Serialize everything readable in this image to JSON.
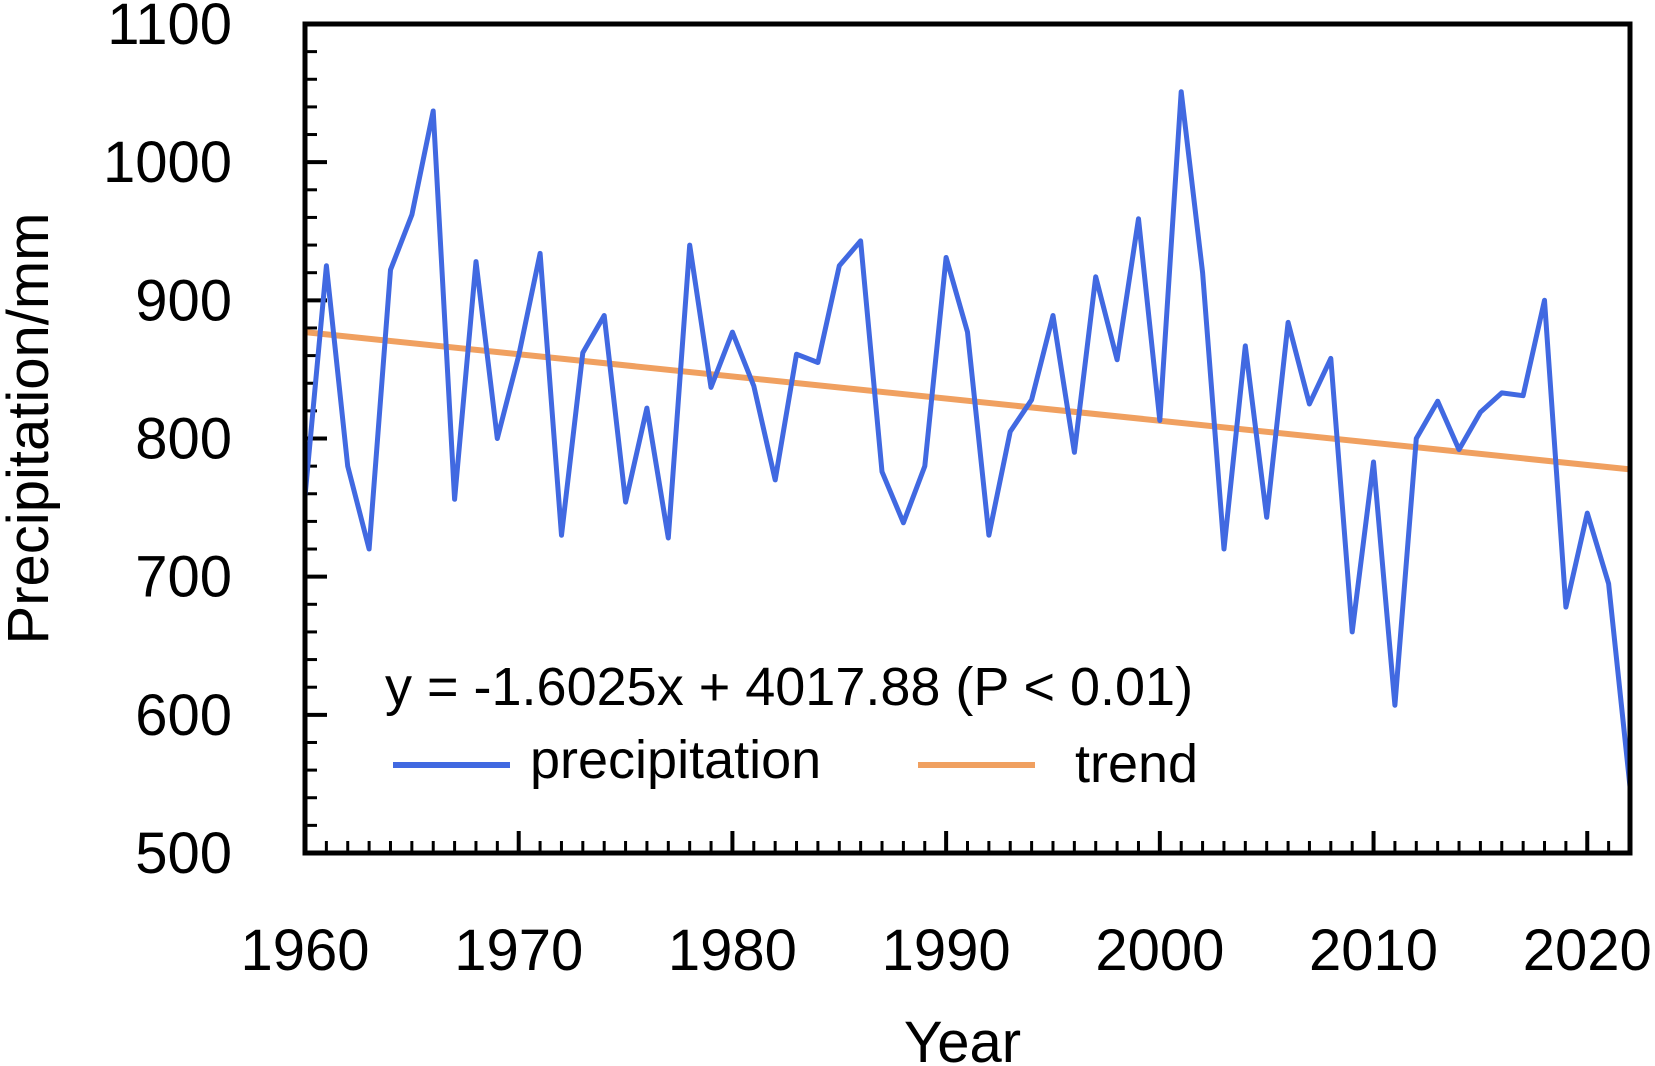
{
  "chart_data": {
    "type": "line",
    "xlabel": "Year",
    "ylabel": "Precipitation/mm",
    "xlim": [
      1960,
      2022
    ],
    "ylim": [
      500,
      1100
    ],
    "xticks": [
      1960,
      1970,
      1980,
      1990,
      2000,
      2010,
      2020
    ],
    "yticks": [
      500,
      600,
      700,
      800,
      900,
      1000,
      1100
    ],
    "x_tick_labels": [
      "1960",
      "1970",
      "1980",
      "1990",
      "2000",
      "2010",
      "2020"
    ],
    "y_tick_labels": [
      "500",
      "600",
      "700",
      "800",
      "900",
      "1000",
      "1100"
    ],
    "annotation": "y = -1.6025x + 4017.88 (P < 0.01)",
    "legend": [
      {
        "label": "precipitation",
        "color": "#4169E1"
      },
      {
        "label": "trend",
        "color": "#F0A060"
      }
    ],
    "x": [
      1960,
      1961,
      1962,
      1963,
      1964,
      1965,
      1966,
      1967,
      1968,
      1969,
      1970,
      1971,
      1972,
      1973,
      1974,
      1975,
      1976,
      1977,
      1978,
      1979,
      1980,
      1981,
      1982,
      1983,
      1984,
      1985,
      1986,
      1987,
      1988,
      1989,
      1990,
      1991,
      1992,
      1993,
      1994,
      1995,
      1996,
      1997,
      1998,
      1999,
      2000,
      2001,
      2002,
      2003,
      2004,
      2005,
      2006,
      2007,
      2008,
      2009,
      2010,
      2011,
      2012,
      2013,
      2014,
      2015,
      2016,
      2017,
      2018,
      2019,
      2020,
      2021,
      2022
    ],
    "series": [
      {
        "name": "precipitation",
        "color": "#4169E1",
        "values": [
          758,
          925,
          780,
          720,
          922,
          962,
          1037,
          756,
          928,
          800,
          860,
          934,
          730,
          862,
          889,
          754,
          822,
          728,
          940,
          837,
          877,
          838,
          770,
          861,
          855,
          925,
          943,
          776,
          739,
          780,
          931,
          877,
          730,
          805,
          828,
          889,
          790,
          917,
          857,
          959,
          813,
          1051,
          920,
          720,
          867,
          743,
          884,
          825,
          858,
          660,
          783,
          607,
          800,
          827,
          792,
          819,
          833,
          831,
          900,
          678,
          746,
          695,
          548
        ]
      },
      {
        "name": "trend",
        "color": "#F0A060",
        "slope": -1.6025,
        "intercept": 4017.88
      }
    ]
  }
}
